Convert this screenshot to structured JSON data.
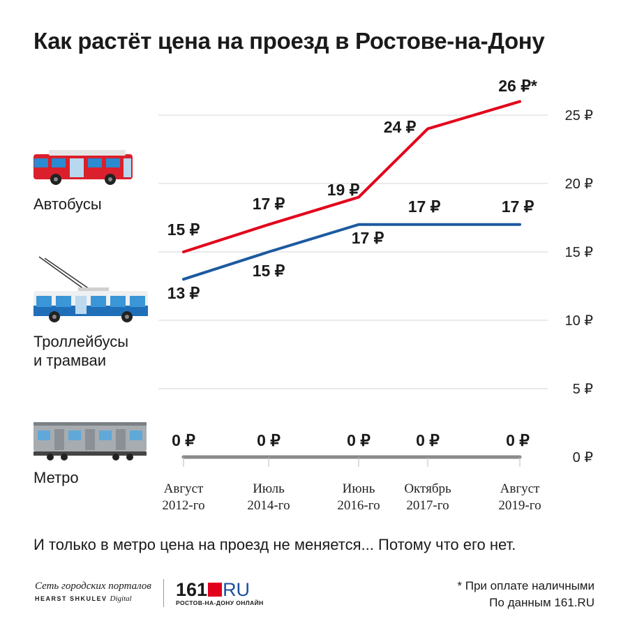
{
  "title": "Как растёт цена на проезд в Ростове-на-Дону",
  "labels": {
    "bus": "Автобусы",
    "trolley_line1": "Троллейбусы",
    "trolley_line2": "и трамваи",
    "metro": "Метро"
  },
  "tagline": "И только в метро цена на проезд не меняется... Потому что его нет.",
  "footnote": {
    "line1": "* При оплате наличными",
    "line2": "По данным 161.RU"
  },
  "logos": {
    "network_line1": "Сеть городских порталов",
    "network_line2": "HEARST SHKULEV",
    "network_line2b": "Digital",
    "brand_number_a": "161",
    "brand_suffix": "RU",
    "brand_tagline": "РОСТОВ-НА-ДОНУ ОНЛАЙН"
  },
  "chart_data": {
    "type": "line",
    "title": "Как растёт цена на проезд в Ростове-на-Дону",
    "x": [
      "Август 2012-го",
      "Июль 2014-го",
      "Июнь 2016-го",
      "Октябрь 2017-го",
      "Август 2019-го"
    ],
    "x_tick_lines": [
      [
        "Август",
        "2012-го"
      ],
      [
        "Июль",
        "2014-го"
      ],
      [
        "Июнь",
        "2016-го"
      ],
      [
        "Октябрь",
        "2017-го"
      ],
      [
        "Август",
        "2019-го"
      ]
    ],
    "x_dates": [
      "2012-08",
      "2014-07",
      "2016-06",
      "2017-10",
      "2019-08"
    ],
    "ylim": [
      0,
      25
    ],
    "yticks": [
      0,
      5,
      10,
      15,
      20,
      25
    ],
    "ytick_labels": [
      "0 ₽",
      "5 ₽",
      "10 ₽",
      "15 ₽",
      "20 ₽",
      "25 ₽"
    ],
    "grid": true,
    "series": [
      {
        "id": "bus",
        "name": "Автобусы",
        "color": "#e3001b",
        "values": [
          15,
          17,
          19,
          24,
          26
        ],
        "labels": [
          "15 ₽",
          "17 ₽",
          "19 ₽",
          "24 ₽",
          "26 ₽*"
        ]
      },
      {
        "id": "trolley",
        "name": "Троллейбусы и трамваи",
        "color": "#1c5aa0",
        "values": [
          13,
          15,
          17,
          17,
          17
        ],
        "labels": [
          "13 ₽",
          "15 ₽",
          "17 ₽",
          "17 ₽",
          "17 ₽"
        ]
      },
      {
        "id": "metro",
        "name": "Метро",
        "color": "#8a8a8a",
        "values": [
          0,
          0,
          0,
          0,
          0
        ],
        "labels": [
          "0 ₽",
          "0 ₽",
          "0 ₽",
          "0 ₽",
          "0 ₽"
        ]
      }
    ]
  }
}
